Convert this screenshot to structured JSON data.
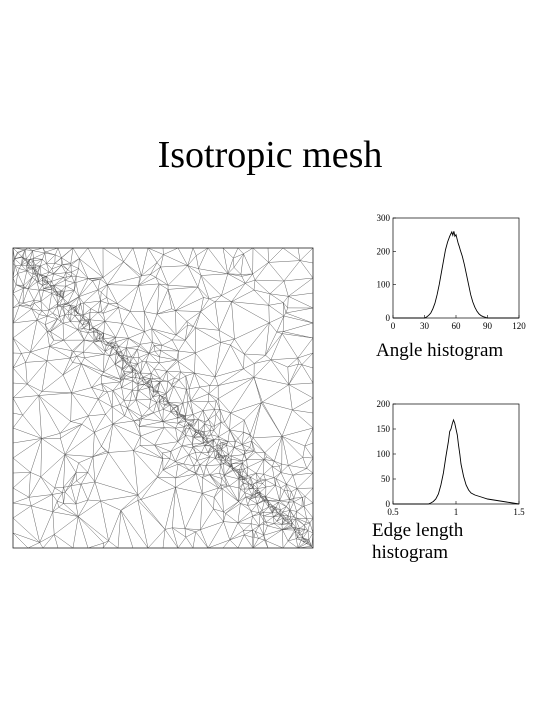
{
  "slide": {
    "title": "Isotropic mesh"
  },
  "mesh": {
    "description_name": "triangular-mesh-refined-along-diagonal",
    "stroke_color": "#555555",
    "background": "#ffffff"
  },
  "chart_data": [
    {
      "type": "line",
      "caption": "Angle histogram",
      "title": "",
      "xlabel": "",
      "ylabel": "",
      "xlim": [
        0,
        120
      ],
      "ylim": [
        0,
        300
      ],
      "xticks": [
        0,
        30,
        60,
        90,
        120
      ],
      "yticks": [
        0,
        100,
        200,
        300
      ],
      "grid": false,
      "series": [
        {
          "x": [
            0,
            30,
            32,
            34,
            36,
            38,
            40,
            42,
            44,
            46,
            48,
            50,
            52,
            54,
            55,
            56,
            57,
            58,
            59,
            60,
            61,
            62,
            63,
            64,
            66,
            68,
            70,
            72,
            74,
            76,
            78,
            80,
            82,
            84,
            86,
            88,
            90,
            120
          ],
          "y": [
            0,
            0,
            3,
            8,
            15,
            28,
            45,
            70,
            100,
            135,
            170,
            205,
            228,
            245,
            252,
            258,
            248,
            260,
            245,
            250,
            238,
            225,
            215,
            205,
            185,
            160,
            130,
            100,
            70,
            48,
            32,
            20,
            12,
            7,
            4,
            2,
            0,
            0
          ]
        }
      ]
    },
    {
      "type": "line",
      "caption": "Edge length histogram",
      "title": "",
      "xlabel": "",
      "ylabel": "",
      "xlim": [
        0.5,
        1.5
      ],
      "ylim": [
        0,
        200
      ],
      "xticks": [
        "0.5",
        "1",
        "1.5"
      ],
      "yticks": [
        0,
        50,
        100,
        150,
        200
      ],
      "grid": false,
      "series": [
        {
          "x": [
            0.5,
            0.78,
            0.8,
            0.82,
            0.84,
            0.86,
            0.88,
            0.9,
            0.92,
            0.94,
            0.95,
            0.96,
            0.97,
            0.98,
            0.99,
            1.0,
            1.01,
            1.02,
            1.03,
            1.04,
            1.06,
            1.08,
            1.1,
            1.12,
            1.15,
            1.2,
            1.25,
            1.3,
            1.35,
            1.4,
            1.45,
            1.5
          ],
          "y": [
            0,
            0,
            2,
            5,
            10,
            20,
            38,
            62,
            95,
            125,
            145,
            150,
            160,
            168,
            162,
            150,
            138,
            118,
            100,
            80,
            55,
            38,
            28,
            22,
            18,
            14,
            10,
            8,
            6,
            4,
            2,
            0
          ]
        }
      ]
    }
  ]
}
